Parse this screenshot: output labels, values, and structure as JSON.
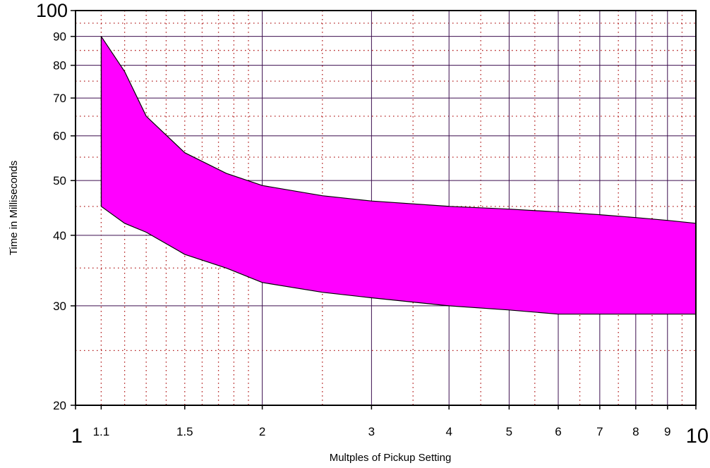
{
  "chart_data": {
    "type": "area",
    "xscale": "log",
    "yscale": "log",
    "xlim": [
      1,
      10
    ],
    "ylim": [
      20,
      100
    ],
    "xlabel": "Multples of Pickup Setting",
    "ylabel": "Time in Milliseconds",
    "title": "",
    "grid": true,
    "fill_color": "#ff00ff",
    "edge_color": "#000000",
    "major_grid_color": "#3d0f4f",
    "minor_grid_color": "#b01818",
    "x_ticks": [
      {
        "value": 1,
        "label": "1",
        "large": true
      },
      {
        "value": 1.1,
        "label": "1.1",
        "large": false
      },
      {
        "value": 1.5,
        "label": "1.5",
        "large": false
      },
      {
        "value": 2,
        "label": "2",
        "large": false
      },
      {
        "value": 3,
        "label": "3",
        "large": false
      },
      {
        "value": 4,
        "label": "4",
        "large": false
      },
      {
        "value": 5,
        "label": "5",
        "large": false
      },
      {
        "value": 6,
        "label": "6",
        "large": false
      },
      {
        "value": 7,
        "label": "7",
        "large": false
      },
      {
        "value": 8,
        "label": "8",
        "large": false
      },
      {
        "value": 9,
        "label": "9",
        "large": false
      },
      {
        "value": 10,
        "label": "10",
        "large": true
      }
    ],
    "y_ticks": [
      {
        "value": 20,
        "label": "20",
        "large": false
      },
      {
        "value": 30,
        "label": "30",
        "large": false
      },
      {
        "value": 40,
        "label": "40",
        "large": false
      },
      {
        "value": 50,
        "label": "50",
        "large": false
      },
      {
        "value": 60,
        "label": "60",
        "large": false
      },
      {
        "value": 70,
        "label": "70",
        "large": false
      },
      {
        "value": 80,
        "label": "80",
        "large": false
      },
      {
        "value": 90,
        "label": "90",
        "large": false
      },
      {
        "value": 100,
        "label": "100",
        "large": true
      }
    ],
    "x_major_grid": [
      2,
      3,
      4,
      5,
      6,
      7,
      8,
      9
    ],
    "x_minor_grid": [
      1.1,
      1.2,
      1.3,
      1.4,
      1.5,
      1.6,
      1.7,
      1.8,
      1.9,
      2.5,
      3.5,
      4.5,
      5.5,
      6.5,
      7.5,
      8.5,
      9.5
    ],
    "y_major_grid": [
      30,
      40,
      50,
      60,
      70,
      80,
      90
    ],
    "y_minor_grid": [
      25,
      35,
      45,
      55,
      65,
      75,
      85,
      95
    ],
    "series": [
      {
        "upper": [
          {
            "x": 1.1,
            "y": 90
          },
          {
            "x": 1.2,
            "y": 78
          },
          {
            "x": 1.3,
            "y": 65
          },
          {
            "x": 1.5,
            "y": 56
          },
          {
            "x": 1.75,
            "y": 51.5
          },
          {
            "x": 2,
            "y": 49
          },
          {
            "x": 2.5,
            "y": 47
          },
          {
            "x": 3,
            "y": 46
          },
          {
            "x": 4,
            "y": 45
          },
          {
            "x": 5,
            "y": 44.5
          },
          {
            "x": 6,
            "y": 44
          },
          {
            "x": 7,
            "y": 43.5
          },
          {
            "x": 8,
            "y": 43
          },
          {
            "x": 9,
            "y": 42.5
          },
          {
            "x": 10,
            "y": 42
          }
        ],
        "lower": [
          {
            "x": 1.1,
            "y": 45
          },
          {
            "x": 1.2,
            "y": 42
          },
          {
            "x": 1.3,
            "y": 40.5
          },
          {
            "x": 1.5,
            "y": 37
          },
          {
            "x": 1.75,
            "y": 35
          },
          {
            "x": 2,
            "y": 33
          },
          {
            "x": 2.5,
            "y": 31.7
          },
          {
            "x": 3,
            "y": 31
          },
          {
            "x": 4,
            "y": 30
          },
          {
            "x": 5,
            "y": 29.5
          },
          {
            "x": 6,
            "y": 29
          },
          {
            "x": 7,
            "y": 29
          },
          {
            "x": 8,
            "y": 29
          },
          {
            "x": 9,
            "y": 29
          },
          {
            "x": 10,
            "y": 29
          }
        ]
      }
    ]
  }
}
